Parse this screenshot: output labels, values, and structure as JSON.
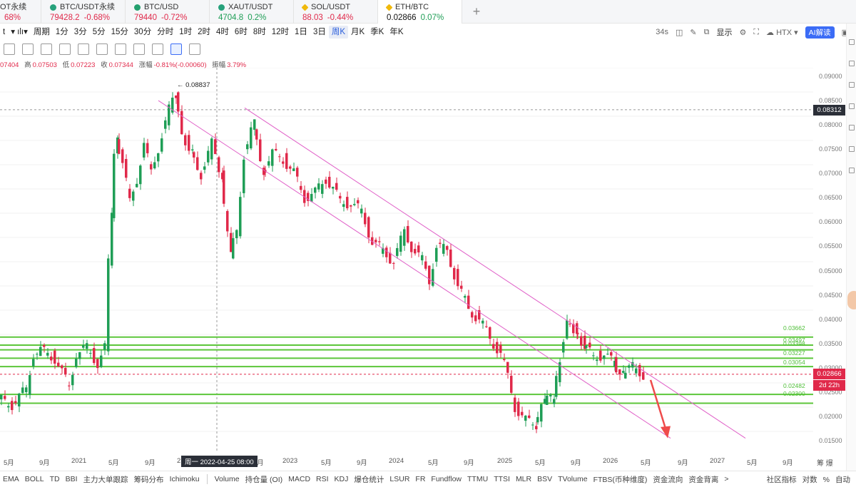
{
  "tickers": [
    {
      "name": "OT永续",
      "price": "",
      "change": "68%",
      "dir": "neg",
      "icon": "none"
    },
    {
      "name": "BTC/USDT永续",
      "price": "79428.2",
      "change": "-0.68%",
      "dir": "neg",
      "icon": "tether"
    },
    {
      "name": "BTC/USD",
      "price": "79440",
      "change": "-0.72%",
      "dir": "neg",
      "icon": "green"
    },
    {
      "name": "XAUT/USDT",
      "price": "4704.8",
      "change": "0.2%",
      "dir": "pos",
      "icon": "tether"
    },
    {
      "name": "SOL/USDT",
      "price": "88.03",
      "change": "-0.44%",
      "dir": "neg",
      "icon": "diamond"
    },
    {
      "name": "ETH/BTC",
      "price": "0.02866",
      "change": "0.07%",
      "dir": "pos",
      "icon": "diamond"
    }
  ],
  "add_tab": "+",
  "timeframes": [
    "周期",
    "1分",
    "3分",
    "5分",
    "15分",
    "30分",
    "分时",
    "1时",
    "2时",
    "4时",
    "6时",
    "8时",
    "12时",
    "1日",
    "3日",
    "周K",
    "月K",
    "季K",
    "年K"
  ],
  "selected_timeframe": "周K",
  "toolbar_prefix": "t",
  "right_tools": {
    "countdown": "34s",
    "display": "显示",
    "exchange": "HTX",
    "ai": "AI解读"
  },
  "ohlc": {
    "open": "07404",
    "high_label": "高",
    "high": "0.07503",
    "low_label": "低",
    "low": "0.07223",
    "close_label": "收",
    "close": "0.07344",
    "chg_label": "涨幅",
    "chg": "-0.81%(-0.00060)",
    "amp_label": "振幅",
    "amp": "3.79%"
  },
  "y_ticks": [
    "0.09000",
    "0.08500",
    "0.08000",
    "0.07500",
    "0.07000",
    "0.06500",
    "0.06000",
    "0.05500",
    "0.05000",
    "0.04500",
    "0.04000",
    "0.03500",
    "0.03000",
    "0.02500",
    "0.02000",
    "0.01500"
  ],
  "crosshair_price": "0.08312",
  "current_price": "0.02866",
  "countdown_tag": "2d 22h",
  "peak_label": "← 0.08837",
  "level_labels": [
    "0.03662",
    "0.03497",
    "0.03398",
    "0.03227",
    "0.03054",
    "0.02482",
    "0.02300"
  ],
  "x_ticks": [
    "5月",
    "9月",
    "2021",
    "5月",
    "9月",
    "2",
    "9月",
    "2023",
    "5月",
    "9月",
    "2024",
    "5月",
    "9月",
    "2025",
    "5月",
    "9月",
    "2026",
    "5月",
    "9月",
    "2027",
    "5月",
    "9月"
  ],
  "x_crosshair": "周一 2022-04-25 08:00",
  "x_right": "筹 爆",
  "indicators_left": [
    "EMA",
    "BOLL",
    "TD",
    "BBI",
    "主力大单跟踪",
    "筹码分布",
    "Ichimoku"
  ],
  "indicators_right": [
    "Volume",
    "持仓量 (OI)",
    "MACD",
    "RSI",
    "KDJ",
    "爆仓统计",
    "LSUR",
    "FR",
    "Fundflow",
    "TTMU",
    "TTSI",
    "MLR",
    "BSV",
    "TVolume",
    "FTBS(币种维度)",
    "资金流向",
    "资金背离",
    ">"
  ],
  "indicators_tail": [
    "社区指标",
    "对数",
    "%",
    "自动"
  ],
  "colors": {
    "up": "#1f9e56",
    "down": "#e0294a",
    "level": "#5cc63a",
    "channel": "#e060c8"
  }
}
